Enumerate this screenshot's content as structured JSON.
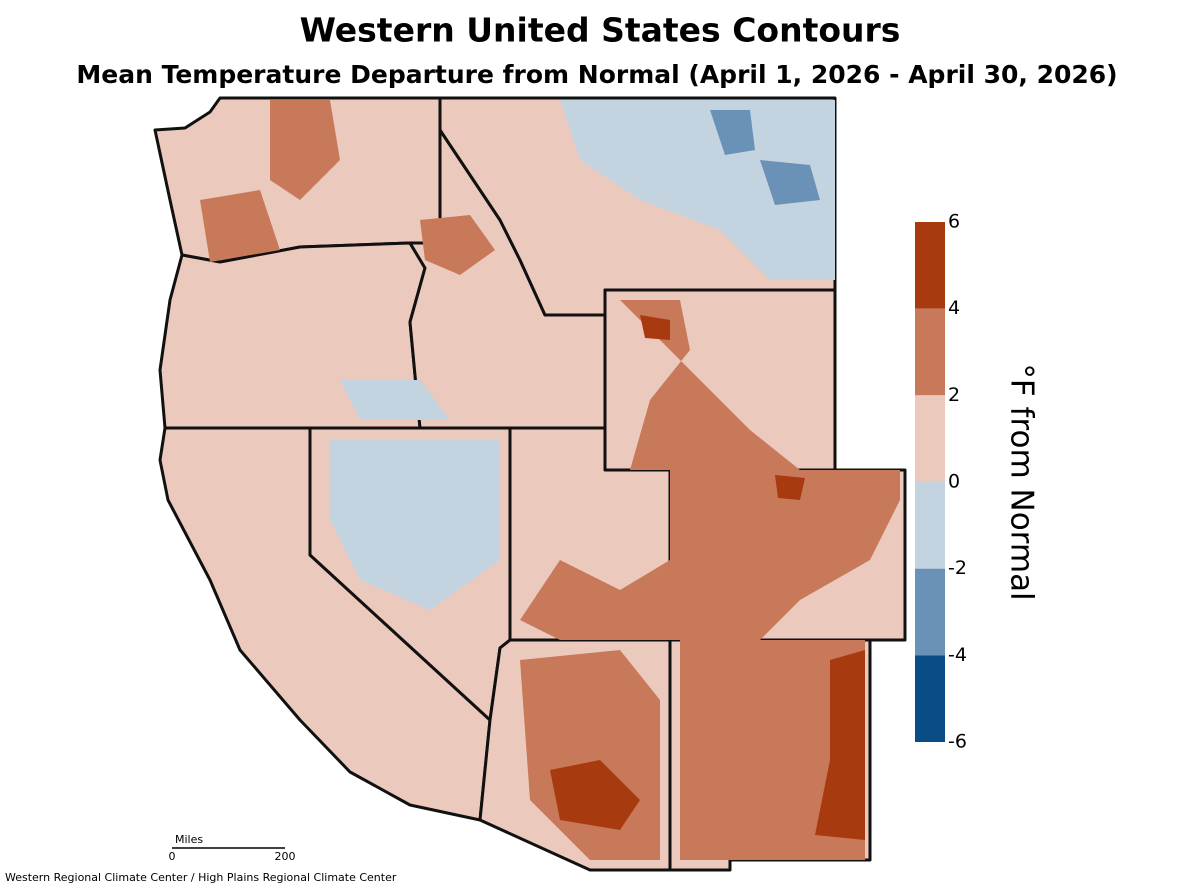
{
  "header": {
    "title": "Western United States Contours",
    "subtitle": "Mean Temperature Departure from Normal (April 1, 2026 - April 30, 2026)"
  },
  "legend": {
    "label": "°F from Normal",
    "ticks": [
      6,
      4,
      2,
      0,
      -2,
      -4,
      -6
    ],
    "colors": [
      "#a83a10",
      "#c8795a",
      "#ecc9bd",
      "#c3d3e0",
      "#6a92b6",
      "#094c86"
    ]
  },
  "scale_bar": {
    "unit": "Miles",
    "start": "0",
    "end": "200"
  },
  "credit": "Western Regional Climate Center / High Plains Regional Climate Center"
}
